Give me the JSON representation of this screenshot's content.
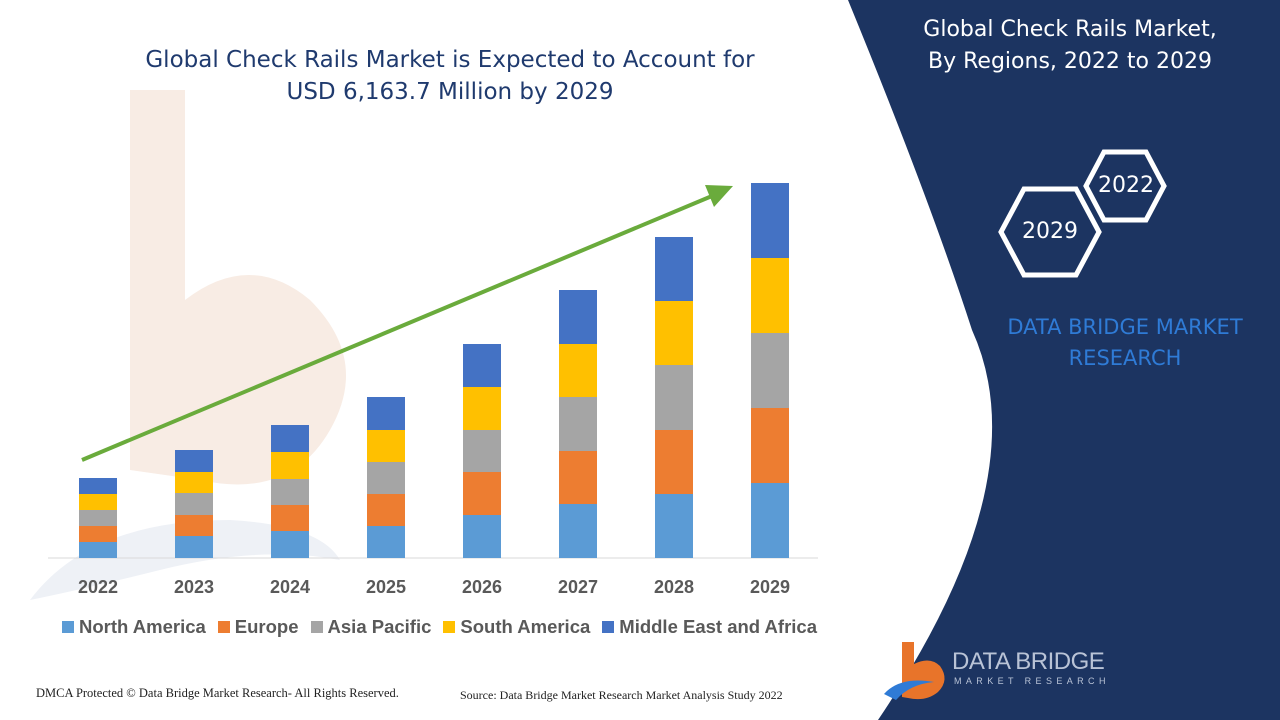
{
  "header": {
    "title_line1": "Global Check Rails Market is Expected to Account for",
    "title_line2": "USD 6,163.7 Million by 2029"
  },
  "panel": {
    "title_line1": "Global Check Rails Market,",
    "title_line2": "By Regions, 2022 to 2029",
    "hex_front": "2029",
    "hex_back": "2022",
    "brand_line1": "DATA BRIDGE MARKET",
    "brand_line2": "RESEARCH",
    "logo_name": "DATA BRIDGE",
    "logo_tagline": "MARKET RESEARCH"
  },
  "footer": {
    "copyright": "DMCA Protected © Data Bridge Market Research- All Rights Reserved.",
    "source": "Source: Data Bridge Market Research Market Analysis Study 2022"
  },
  "colors": {
    "navy_panel": "#1c3461",
    "title_text": "#1f3a6e",
    "trend_arrow": "#6aab3c",
    "brand_blue": "#2f7bd6"
  },
  "chart_data": {
    "type": "bar",
    "stacked": true,
    "categories": [
      "2022",
      "2023",
      "2024",
      "2025",
      "2026",
      "2027",
      "2028",
      "2029"
    ],
    "series": [
      {
        "name": "North America",
        "color": "#5b9bd5",
        "values": [
          16,
          22,
          27,
          32,
          43,
          54,
          64,
          75
        ]
      },
      {
        "name": "Europe",
        "color": "#ed7d31",
        "values": [
          16,
          21,
          26,
          32,
          43,
          53,
          64,
          75
        ]
      },
      {
        "name": "Asia Pacific",
        "color": "#a5a5a5",
        "values": [
          16,
          22,
          26,
          32,
          42,
          54,
          65,
          75
        ]
      },
      {
        "name": "South America",
        "color": "#ffc000",
        "values": [
          16,
          21,
          27,
          32,
          43,
          53,
          64,
          75
        ]
      },
      {
        "name": "Middle East and Africa",
        "color": "#4472c4",
        "values": [
          16,
          22,
          27,
          33,
          43,
          54,
          64,
          75
        ]
      }
    ],
    "ylim": [
      0,
      380
    ],
    "legend_position": "bottom",
    "grid": false,
    "trend_arrow": true
  }
}
